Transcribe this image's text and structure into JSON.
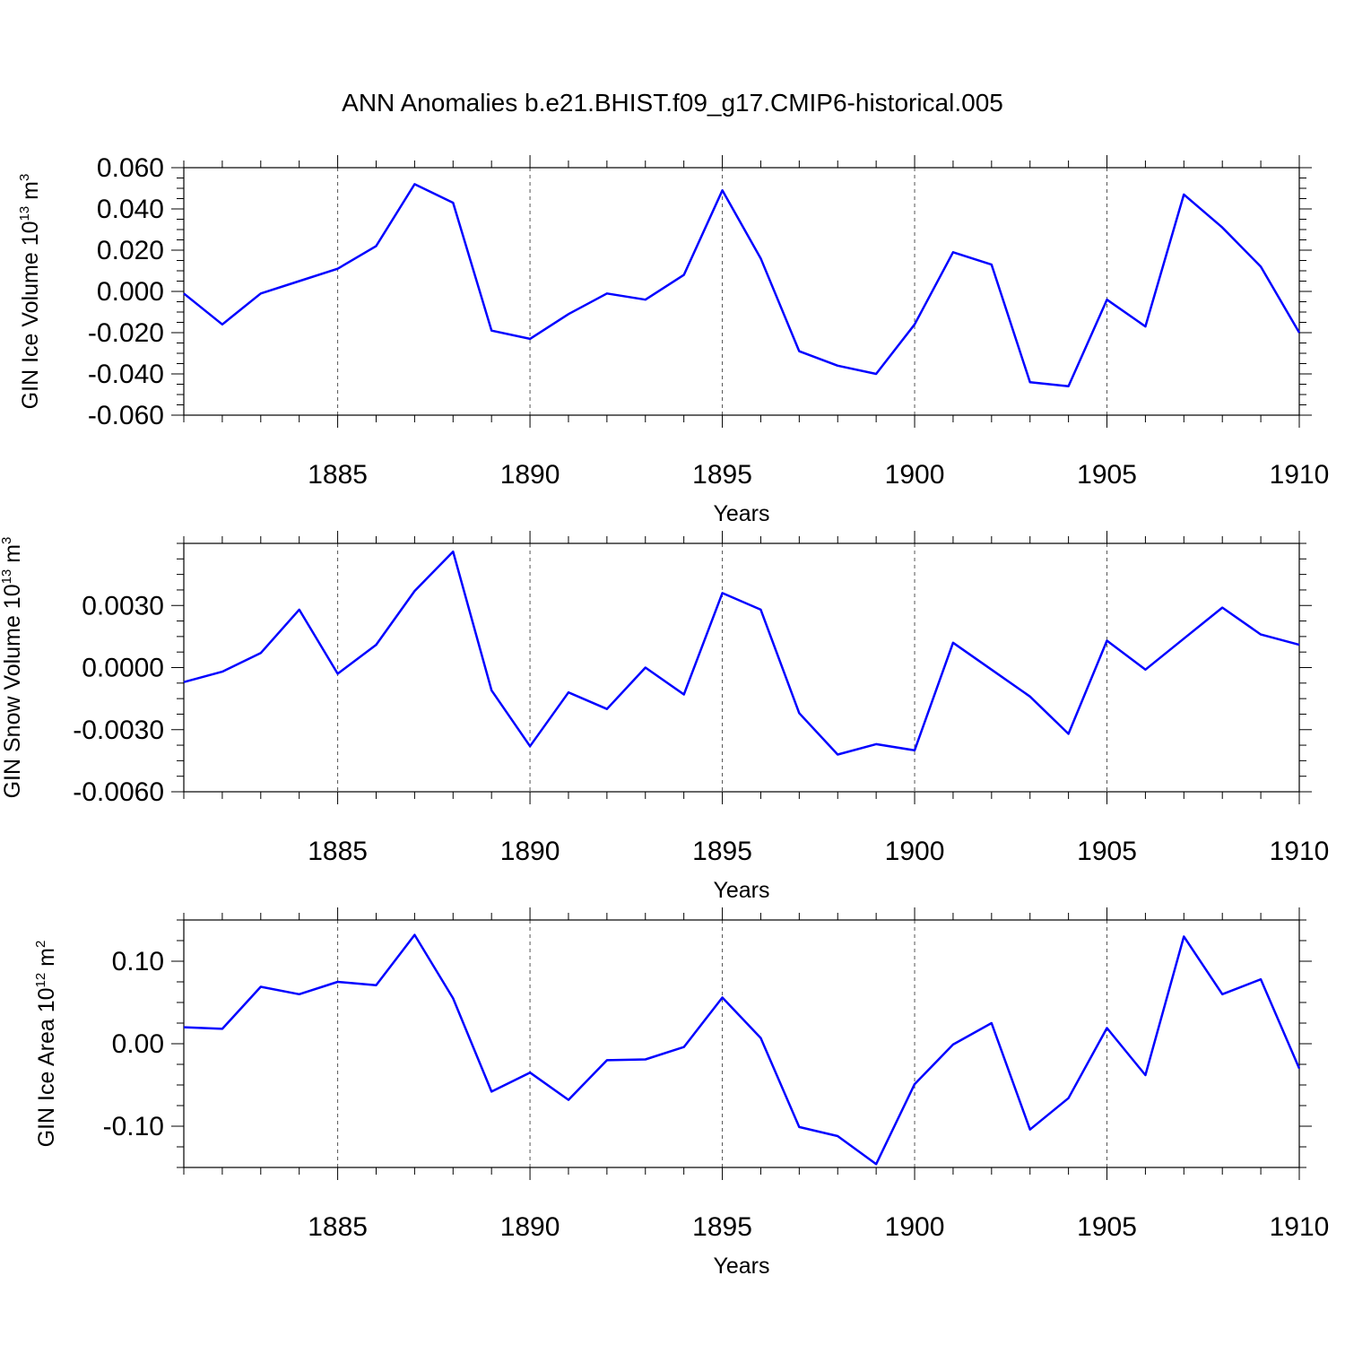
{
  "title": "ANN Anomalies b.e21.BHIST.f09_g17.CMIP6-historical.005",
  "line_color": "#0000ff",
  "chart_data": [
    {
      "type": "line",
      "ylabel_main": "GIN Ice Volume 10",
      "ylabel_exp": "13",
      "ylabel_unit": " m",
      "ylabel_unit_exp": "3",
      "xlabel": "Years",
      "xlim": [
        1881,
        1910
      ],
      "ylim": [
        -0.06,
        0.06
      ],
      "yticks": [
        -0.06,
        -0.04,
        -0.02,
        0.0,
        0.02,
        0.04,
        0.06
      ],
      "ytick_labels": [
        "-0.060",
        "-0.040",
        "-0.020",
        "0.000",
        "0.020",
        "0.040",
        "0.060"
      ],
      "xticks": [
        1885,
        1890,
        1895,
        1900,
        1905,
        1910
      ],
      "xtick_labels": [
        "1885",
        "1890",
        "1895",
        "1900",
        "1905",
        "1910"
      ],
      "grid": "vertical dashed at major x ticks",
      "x": [
        1881,
        1882,
        1883,
        1884,
        1885,
        1886,
        1887,
        1888,
        1889,
        1890,
        1891,
        1892,
        1893,
        1894,
        1895,
        1896,
        1897,
        1898,
        1899,
        1900,
        1901,
        1902,
        1903,
        1904,
        1905,
        1906,
        1907,
        1908,
        1909,
        1910
      ],
      "series": [
        {
          "values": [
            -0.001,
            -0.016,
            -0.001,
            0.005,
            0.011,
            0.022,
            0.052,
            0.043,
            -0.019,
            -0.023,
            -0.011,
            -0.001,
            -0.004,
            0.008,
            0.049,
            0.016,
            -0.029,
            -0.036,
            -0.04,
            -0.016,
            0.019,
            0.013,
            -0.044,
            -0.046,
            -0.004,
            -0.017,
            0.047,
            0.031,
            0.012,
            -0.02
          ]
        }
      ]
    },
    {
      "type": "line",
      "ylabel_main": "GIN Snow Volume 10",
      "ylabel_exp": "13",
      "ylabel_unit": " m",
      "ylabel_unit_exp": "3",
      "xlabel": "Years",
      "xlim": [
        1881,
        1910
      ],
      "ylim": [
        -0.006,
        0.006
      ],
      "yticks": [
        -0.006,
        -0.003,
        0.0,
        0.003
      ],
      "ytick_labels": [
        "-0.0060",
        "-0.0030",
        "0.0000",
        "0.0030"
      ],
      "xticks": [
        1885,
        1890,
        1895,
        1900,
        1905,
        1910
      ],
      "xtick_labels": [
        "1885",
        "1890",
        "1895",
        "1900",
        "1905",
        "1910"
      ],
      "grid": "vertical dashed at major x ticks",
      "x": [
        1881,
        1882,
        1883,
        1884,
        1885,
        1886,
        1887,
        1888,
        1889,
        1890,
        1891,
        1892,
        1893,
        1894,
        1895,
        1896,
        1897,
        1898,
        1899,
        1900,
        1901,
        1902,
        1903,
        1904,
        1905,
        1906,
        1907,
        1908,
        1909,
        1910
      ],
      "series": [
        {
          "values": [
            -0.0007,
            -0.0002,
            0.0007,
            0.0028,
            -0.0003,
            0.0011,
            0.0037,
            0.0056,
            -0.0011,
            -0.0038,
            -0.0012,
            -0.002,
            0.0,
            -0.0013,
            0.0036,
            0.0028,
            -0.0022,
            -0.0042,
            -0.0037,
            -0.004,
            0.0012,
            -0.0001,
            -0.0014,
            -0.0032,
            0.0013,
            -0.0001,
            0.0014,
            0.0029,
            0.0016,
            0.0011
          ]
        }
      ]
    },
    {
      "type": "line",
      "ylabel_main": "GIN Ice Area 10",
      "ylabel_exp": "12",
      "ylabel_unit": " m",
      "ylabel_unit_exp": "2",
      "xlabel": "Years",
      "xlim": [
        1881,
        1910
      ],
      "ylim": [
        -0.15,
        0.15
      ],
      "yticks": [
        -0.1,
        0.0,
        0.1
      ],
      "ytick_labels": [
        "-0.10",
        "0.00",
        "0.10"
      ],
      "xticks": [
        1885,
        1890,
        1895,
        1900,
        1905,
        1910
      ],
      "xtick_labels": [
        "1885",
        "1890",
        "1895",
        "1900",
        "1905",
        "1910"
      ],
      "grid": "vertical dashed at major x ticks",
      "x": [
        1881,
        1882,
        1883,
        1884,
        1885,
        1886,
        1887,
        1888,
        1889,
        1890,
        1891,
        1892,
        1893,
        1894,
        1895,
        1896,
        1897,
        1898,
        1899,
        1900,
        1901,
        1902,
        1903,
        1904,
        1905,
        1906,
        1907,
        1908,
        1909,
        1910
      ],
      "series": [
        {
          "values": [
            0.02,
            0.018,
            0.069,
            0.06,
            0.075,
            0.071,
            0.132,
            0.055,
            -0.058,
            -0.035,
            -0.068,
            -0.02,
            -0.019,
            -0.004,
            0.056,
            0.007,
            -0.101,
            -0.112,
            -0.146,
            -0.049,
            -0.001,
            0.025,
            -0.104,
            -0.066,
            0.019,
            -0.038,
            0.13,
            0.06,
            0.078,
            -0.03
          ]
        }
      ]
    }
  ]
}
